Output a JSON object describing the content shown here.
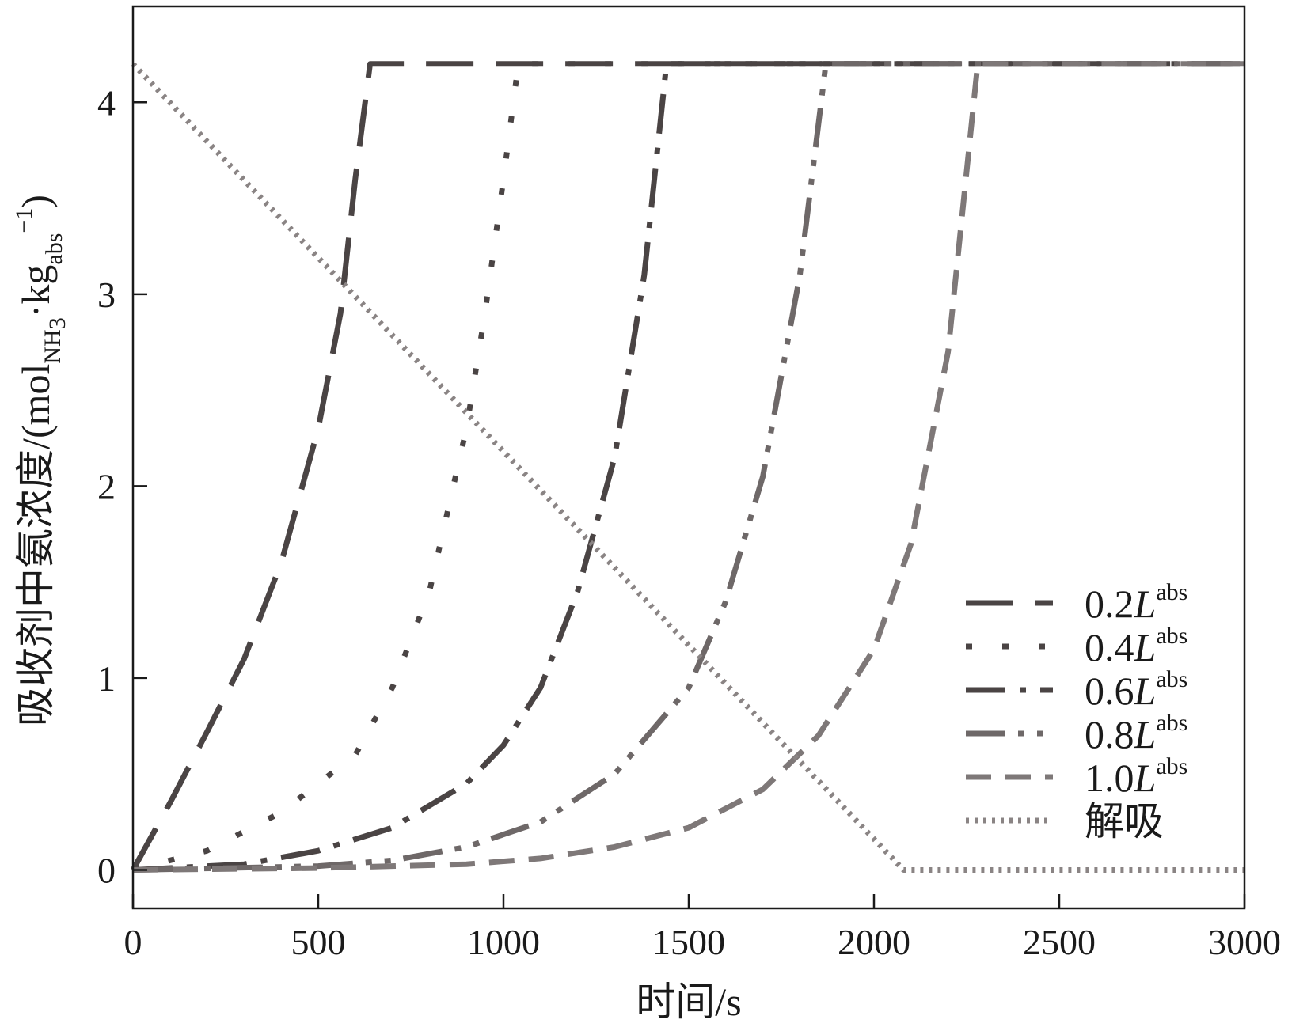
{
  "chart_data": {
    "type": "line",
    "title": "",
    "xlabel": "时间/s",
    "ylabel": {
      "main": "吸收剂中氨浓度/(mol",
      "sub1": "NH",
      "sub1b": "3",
      "mid": "·kg",
      "sub2": "abs",
      "sup2": "−1",
      "end": ")"
    },
    "xlim": [
      0,
      3000
    ],
    "ylim": [
      -0.2,
      4.5
    ],
    "xticks": [
      0,
      500,
      1000,
      1500,
      2000,
      2500,
      3000
    ],
    "yticks": [
      0,
      1,
      2,
      3,
      4
    ],
    "grid": false,
    "legend_position": "lower-right",
    "series": [
      {
        "name": "0.2",
        "name_italic": "L",
        "name_sub": "abs",
        "color": "#4a4444",
        "dash": "60,28",
        "x": [
          0,
          100,
          200,
          300,
          400,
          500,
          560,
          600,
          640,
          3000
        ],
        "y": [
          0,
          0.35,
          0.72,
          1.1,
          1.6,
          2.3,
          2.9,
          3.6,
          4.2,
          4.2
        ]
      },
      {
        "name": "0.4",
        "name_italic": "L",
        "name_sub": "abs",
        "color": "#4a4444",
        "dash": "8,38",
        "x": [
          0,
          200,
          400,
          600,
          700,
          800,
          900,
          950,
          1000,
          1040,
          3000
        ],
        "y": [
          0,
          0.1,
          0.3,
          0.6,
          0.95,
          1.45,
          2.3,
          2.9,
          3.6,
          4.2,
          4.2
        ]
      },
      {
        "name": "0.6",
        "name_italic": "L",
        "name_sub": "abs",
        "color": "#4a4444",
        "dash": "50,18,8,18",
        "x": [
          0,
          300,
          500,
          700,
          900,
          1000,
          1100,
          1200,
          1300,
          1380,
          1440,
          3000
        ],
        "y": [
          0,
          0.03,
          0.1,
          0.22,
          0.45,
          0.65,
          0.95,
          1.45,
          2.15,
          3.1,
          4.2,
          4.2
        ]
      },
      {
        "name": "0.8",
        "name_italic": "L",
        "name_sub": "abs",
        "color": "#6e6868",
        "dash": "50,16,8,16,8,16",
        "x": [
          0,
          500,
          700,
          900,
          1100,
          1300,
          1500,
          1600,
          1700,
          1800,
          1870,
          3000
        ],
        "y": [
          0,
          0.02,
          0.05,
          0.12,
          0.25,
          0.5,
          0.95,
          1.4,
          2.05,
          3.1,
          4.2,
          4.2
        ]
      },
      {
        "name": "1.0",
        "name_italic": "L",
        "name_sub": "abs",
        "color": "#7e7878",
        "dash": "32,18",
        "x": [
          0,
          500,
          900,
          1100,
          1300,
          1500,
          1700,
          1850,
          2000,
          2100,
          2200,
          2280,
          3000
        ],
        "y": [
          0,
          0.01,
          0.03,
          0.06,
          0.12,
          0.22,
          0.42,
          0.7,
          1.15,
          1.7,
          2.7,
          4.2,
          4.2
        ]
      },
      {
        "name": "解吸",
        "name_italic": "",
        "name_sub": "",
        "color": "#8a8484",
        "dash": "4,7",
        "x": [
          0,
          2080,
          3000
        ],
        "y": [
          4.2,
          0,
          0
        ]
      }
    ]
  }
}
